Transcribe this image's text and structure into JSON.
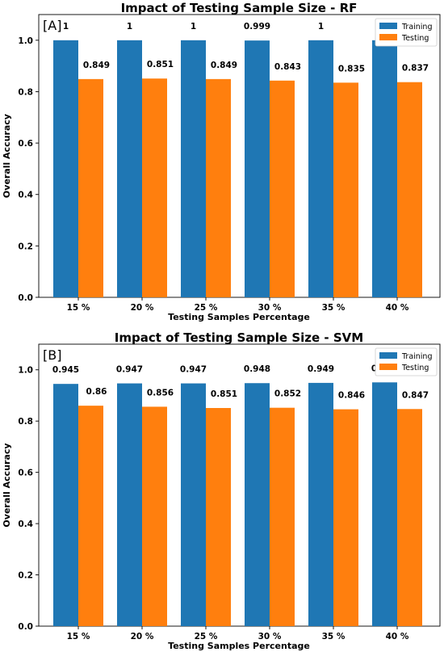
{
  "colors": {
    "training": "#1f77b4",
    "testing": "#ff7f0e"
  },
  "chart_data": [
    {
      "type": "bar",
      "panel_label": "[A]",
      "title": "Impact of Testing Sample Size - RF",
      "xlabel": "Testing Samples Percentage",
      "ylabel": "Overall Accuracy",
      "ylim": [
        0,
        1.1
      ],
      "yticks": [
        "0.0",
        "0.2",
        "0.4",
        "0.6",
        "0.8",
        "1.0"
      ],
      "categories": [
        "15 %",
        "20 %",
        "25 %",
        "30 %",
        "35 %",
        "40 %"
      ],
      "legend_position": "top-right",
      "grid": false,
      "series": [
        {
          "name": "Training",
          "values": [
            1,
            1,
            1,
            0.999,
            1,
            1
          ],
          "labels": [
            "1",
            "1",
            "1",
            "0.999",
            "1",
            "1"
          ]
        },
        {
          "name": "Testing",
          "values": [
            0.849,
            0.851,
            0.849,
            0.843,
            0.835,
            0.837
          ],
          "labels": [
            "0.849",
            "0.851",
            "0.849",
            "0.843",
            "0.835",
            "0.837"
          ]
        }
      ]
    },
    {
      "type": "bar",
      "panel_label": "[B]",
      "title": "Impact of Testing Sample Size - SVM",
      "xlabel": "Testing Samples Percentage",
      "ylabel": "Overall Accuracy",
      "ylim": [
        0,
        1.1
      ],
      "yticks": [
        "0.0",
        "0.2",
        "0.4",
        "0.6",
        "0.8",
        "1.0"
      ],
      "categories": [
        "15 %",
        "20 %",
        "25 %",
        "30 %",
        "35 %",
        "40 %"
      ],
      "legend_position": "top-right",
      "grid": false,
      "series": [
        {
          "name": "Training",
          "values": [
            0.945,
            0.947,
            0.947,
            0.948,
            0.949,
            0.951
          ],
          "labels": [
            "0.945",
            "0.947",
            "0.947",
            "0.948",
            "0.949",
            "0.951"
          ]
        },
        {
          "name": "Testing",
          "values": [
            0.86,
            0.856,
            0.851,
            0.852,
            0.846,
            0.847
          ],
          "labels": [
            "0.86",
            "0.856",
            "0.851",
            "0.852",
            "0.846",
            "0.847"
          ]
        }
      ]
    }
  ]
}
